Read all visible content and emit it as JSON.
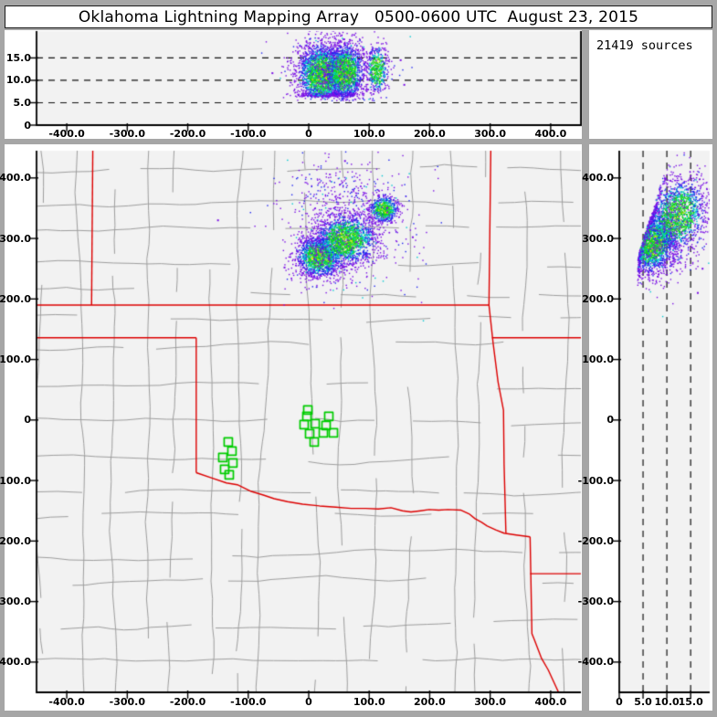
{
  "title": "Oklahoma Lightning Mapping Array   0500-0600 UTC  August 23, 2015",
  "sources_label": "21419 sources",
  "colors": {
    "background": "#a6a6a6",
    "panel": "#ffffff",
    "plot_bg": "#f2f2f2",
    "axis": "#000000",
    "dash": "#111111",
    "county": "#9e9e9e",
    "state_border": "#dd0000",
    "station": "#00cc00",
    "density_scale": {
      "low": "#7b10e6",
      "mid_low": "#2026f0",
      "mid": "#00c8d2",
      "mid_high": "#16d223",
      "high": "#e6e600"
    }
  },
  "chart_data": [
    {
      "id": "ew-altitude-cross-section",
      "type": "scatter",
      "xlim": [
        -450,
        450
      ],
      "ylim": [
        0,
        21
      ],
      "x_tick_values": [
        -400,
        -300,
        -200,
        -100,
        0,
        100,
        200,
        300,
        400
      ],
      "x_tick_labels": [
        "-400.0",
        "-300.0",
        "-200.0",
        "-100.0",
        "0",
        "100.0",
        "200.0",
        "300.0",
        "400.0"
      ],
      "y_tick_values": [
        0,
        5,
        10,
        15
      ],
      "y_tick_labels": [
        "0",
        "5.0",
        "10.0",
        "15.0"
      ],
      "gridlines_alt": [
        5,
        10,
        15
      ],
      "seed": 42,
      "clusters": [
        {
          "cx": 22,
          "cy": 11.3,
          "sx": 20,
          "sy": 3.4,
          "n": 2300,
          "kind": "core",
          "amin": 6.3
        },
        {
          "cx": 60,
          "cy": 11.8,
          "sx": 16,
          "sy": 3.2,
          "n": 1500,
          "kind": "core",
          "amin": 6.3
        },
        {
          "cx": 113,
          "cy": 12.4,
          "sx": 9,
          "sy": 2.7,
          "n": 450,
          "kind": "core",
          "amin": 7.4
        },
        {
          "cx": 48,
          "cy": 12.0,
          "sx": 42,
          "sy": 4.6,
          "n": 430,
          "kind": "fringe",
          "amin": 5.4
        }
      ],
      "strays": [
        [
          -60,
          11.6
        ],
        [
          152,
          14.5
        ],
        [
          158,
          9.0
        ]
      ]
    },
    {
      "id": "plan-view-map",
      "type": "scatter",
      "xlim": [
        -450,
        450
      ],
      "ylim": [
        -450,
        445
      ],
      "x_tick_values": [
        -400,
        -300,
        -200,
        -100,
        0,
        100,
        200,
        300,
        400
      ],
      "x_tick_labels": [
        "-400.0",
        "-300.0",
        "-200.0",
        "-100.0",
        "0",
        "100.0",
        "200.0",
        "300.0",
        "400.0"
      ],
      "y_tick_values": [
        400,
        300,
        200,
        100,
        0,
        -100,
        -200,
        -300,
        -400
      ],
      "y_tick_labels": [
        "400.0",
        "300.0",
        "200.0",
        "100.0",
        "0",
        "-100.0",
        "-200.0",
        "-300.0",
        "-400.0"
      ],
      "seed": 99,
      "clusters": [
        {
          "cx": 18,
          "cy": 270,
          "sx": 19,
          "sy": 17,
          "n": 1500,
          "kind": "core"
        },
        {
          "cx": 62,
          "cy": 298,
          "sx": 25,
          "sy": 21,
          "n": 1700,
          "kind": "core"
        },
        {
          "cx": 124,
          "cy": 348,
          "sx": 12,
          "sy": 11,
          "n": 600,
          "kind": "core"
        },
        {
          "cx": 55,
          "cy": 372,
          "sx": 45,
          "sy": 33,
          "n": 300,
          "kind": "fringe"
        },
        {
          "cx": 65,
          "cy": 300,
          "sx": 60,
          "sy": 48,
          "n": 380,
          "kind": "fringe"
        }
      ],
      "strays": [
        [
          -40,
          252
        ],
        [
          172,
          302
        ],
        [
          60,
          428
        ],
        [
          -150,
          330
        ]
      ],
      "stations": [
        [
          -1.5,
          16.6
        ],
        [
          -3.0,
          6.0
        ],
        [
          33.2,
          6.0
        ],
        [
          -7.6,
          -7.5
        ],
        [
          10.6,
          -6.0
        ],
        [
          28.7,
          -9.0
        ],
        [
          1.5,
          -22.6
        ],
        [
          24.2,
          -21.1
        ],
        [
          40.8,
          -21.1
        ],
        [
          9.1,
          -36.2
        ],
        [
          -133.0,
          -36.2
        ],
        [
          -126.9,
          -51.3
        ],
        [
          -142.0,
          -61.8
        ],
        [
          -125.4,
          -70.9
        ],
        [
          -139.0,
          -81.4
        ],
        [
          -131.4,
          -90.5
        ]
      ],
      "state_borders": [
        {
          "name": "kansas-oklahoma",
          "points": [
            [
              -450,
              190
            ],
            [
              298,
              190
            ]
          ]
        },
        {
          "name": "colorado-kansas",
          "points": [
            [
              -357,
              445
            ],
            [
              -359,
              190
            ]
          ]
        },
        {
          "name": "oklahoma-panhandle-south",
          "points": [
            [
              -450,
              136
            ],
            [
              -186,
              136
            ]
          ]
        },
        {
          "name": "texas-oklahoma-100w",
          "points": [
            [
              -186,
              136
            ],
            [
              -186,
              -87
            ]
          ]
        },
        {
          "name": "red-river",
          "points": [
            [
              -186,
              -87
            ],
            [
              -160,
              -96
            ],
            [
              -136,
              -104
            ],
            [
              -118,
              -107
            ],
            [
              -95,
              -118
            ],
            [
              -75,
              -124
            ],
            [
              -57,
              -130
            ],
            [
              -35,
              -135
            ],
            [
              -10,
              -139
            ],
            [
              18,
              -142
            ],
            [
              45,
              -144
            ],
            [
              70,
              -146
            ],
            [
              94,
              -146
            ],
            [
              115,
              -147
            ],
            [
              136,
              -145
            ],
            [
              155,
              -150
            ],
            [
              169,
              -152
            ],
            [
              185,
              -150
            ],
            [
              199,
              -148
            ],
            [
              215,
              -149
            ],
            [
              230,
              -148
            ],
            [
              252,
              -149
            ],
            [
              265,
              -155
            ],
            [
              275,
              -163
            ],
            [
              286,
              -169
            ],
            [
              295,
              -175
            ],
            [
              310,
              -182
            ],
            [
              323,
              -187
            ],
            [
              343,
              -190
            ],
            [
              366,
              -193
            ]
          ]
        },
        {
          "name": "kansas-missouri-oklahoma-arkansas-east",
          "points": [
            [
              301,
              445
            ],
            [
              298,
              190
            ],
            [
              305,
              126
            ],
            [
              313,
              63
            ],
            [
              322,
              16
            ],
            [
              323,
              -73
            ],
            [
              326,
              -187
            ]
          ]
        },
        {
          "name": "missouri-arkansas",
          "points": [
            [
              303,
              136
            ],
            [
              450,
              136
            ]
          ]
        },
        {
          "name": "texas-arkansas",
          "points": [
            [
              366,
              -193
            ],
            [
              369,
              -353
            ],
            [
              373,
              -363
            ],
            [
              385,
              -394
            ],
            [
              396,
              -413
            ],
            [
              408,
              -439
            ],
            [
              414,
              -452
            ]
          ]
        },
        {
          "name": "arkansas-louisiana",
          "points": [
            [
              366,
              -254
            ],
            [
              450,
              -254
            ]
          ]
        }
      ],
      "county_grid": {
        "seed": 7,
        "col_step": [
          26,
          48
        ],
        "row_step": [
          26,
          46
        ],
        "jitter": 7,
        "skip": 0.2
      }
    },
    {
      "id": "ns-altitude-cross-section",
      "type": "scatter",
      "xlim": [
        0,
        19
      ],
      "ylim": [
        -450,
        445
      ],
      "x_tick_values": [
        0,
        5,
        10,
        15
      ],
      "x_tick_labels": [
        "0",
        "5.0",
        "10.0",
        "15.0"
      ],
      "y_tick_values": [
        400,
        300,
        200,
        100,
        0,
        -100,
        -200,
        -300,
        -400
      ],
      "y_tick_labels": [
        "400.0",
        "300.0",
        "200.0",
        "100.0",
        "0",
        "-100.0",
        "-200.0",
        "-300.0",
        "-400.0"
      ],
      "gridlines_alt": [
        5,
        10,
        15
      ],
      "seed": 77,
      "clusters": [
        {
          "cx": 7.2,
          "cy": 292,
          "sx": 2.3,
          "sy": 24,
          "n": 1900,
          "kind": "core",
          "shear": 0.018,
          "amin": 3.9
        },
        {
          "cx": 12.3,
          "cy": 338,
          "sx": 2.9,
          "sy": 30,
          "n": 1500,
          "kind": "core",
          "shear": 0.02,
          "amin": 3.9
        },
        {
          "cx": 10.5,
          "cy": 318,
          "sx": 4.8,
          "sy": 48,
          "n": 430,
          "kind": "fringe",
          "shear": 0.02,
          "amin": 3.9
        }
      ],
      "strays": [
        [
          16.5,
          210
        ],
        [
          17.5,
          250
        ]
      ]
    }
  ]
}
